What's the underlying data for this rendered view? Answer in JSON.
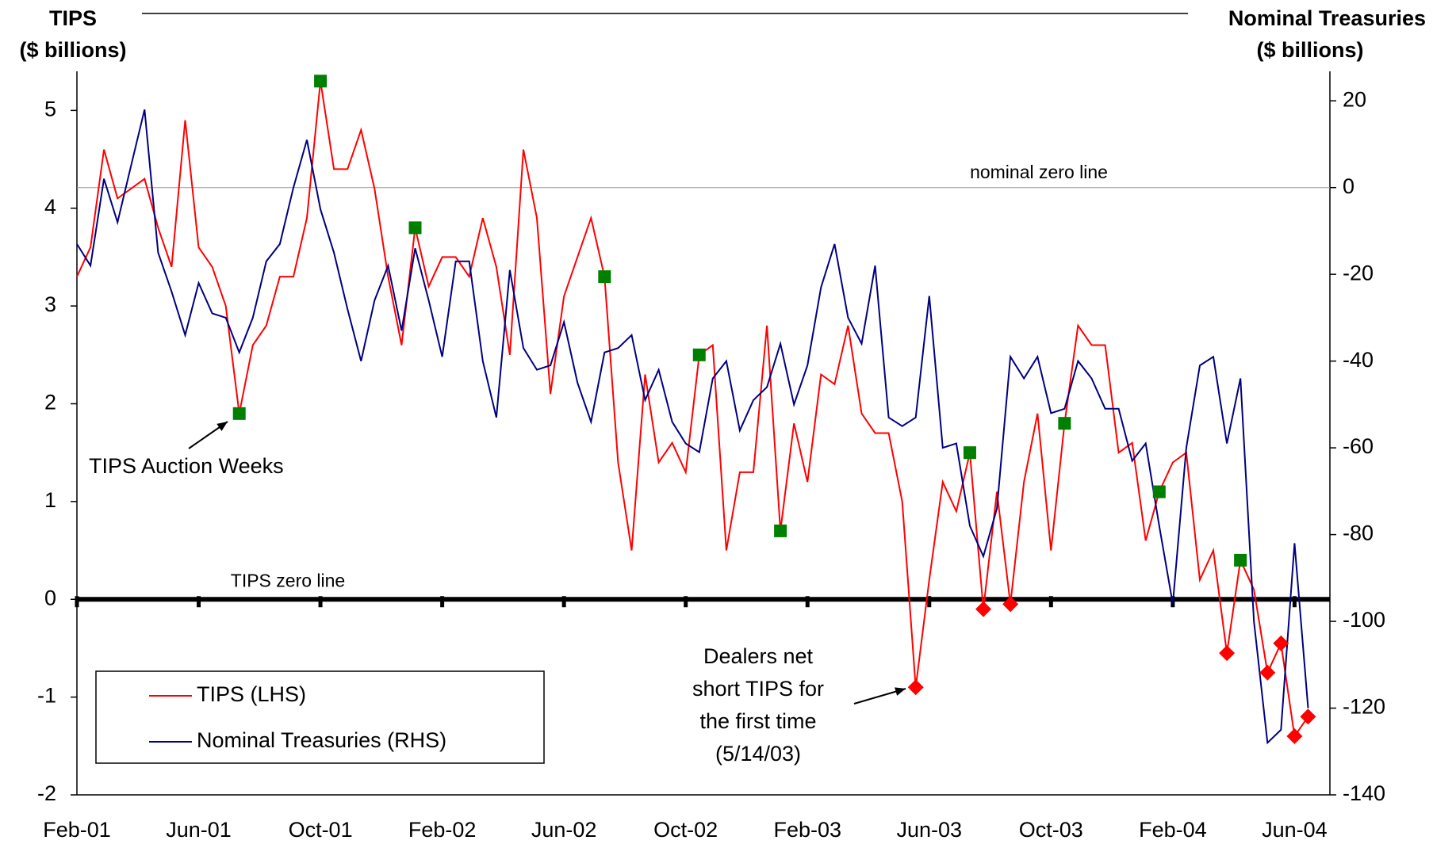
{
  "chart_data": {
    "type": "line",
    "y_label_lines": [
      "TIPS",
      "($ billions)"
    ],
    "y2_label_lines": [
      "Nominal Treasuries",
      "($ billions)"
    ],
    "categories": [
      "Feb-01",
      null,
      null,
      null,
      null,
      null,
      null,
      null,
      null,
      "Jun-01",
      null,
      null,
      null,
      null,
      null,
      null,
      null,
      null,
      "Oct-01",
      null,
      null,
      null,
      null,
      null,
      null,
      null,
      null,
      "Feb-02",
      null,
      null,
      null,
      null,
      null,
      null,
      null,
      null,
      "Jun-02",
      null,
      null,
      null,
      null,
      null,
      null,
      null,
      null,
      "Oct-02",
      null,
      null,
      null,
      null,
      null,
      null,
      null,
      null,
      "Feb-03",
      null,
      null,
      null,
      null,
      null,
      null,
      null,
      null,
      "Jun-03",
      null,
      null,
      null,
      null,
      null,
      null,
      null,
      null,
      "Oct-03",
      null,
      null,
      null,
      null,
      null,
      null,
      null,
      null,
      "Feb-04",
      null,
      null,
      null,
      null,
      null,
      null,
      null,
      null,
      "Jun-04",
      null
    ],
    "series": [
      {
        "name": "TIPS (LHS)",
        "color": "#ff0000",
        "axis": "y",
        "values": [
          3.3,
          3.6,
          4.6,
          4.1,
          4.2,
          4.3,
          3.8,
          3.4,
          4.9,
          3.6,
          3.4,
          3.0,
          1.9,
          2.6,
          2.8,
          3.3,
          3.3,
          3.9,
          5.3,
          4.4,
          4.4,
          4.8,
          4.2,
          3.3,
          2.6,
          3.8,
          3.2,
          3.5,
          3.5,
          3.3,
          3.9,
          3.4,
          2.5,
          4.6,
          3.9,
          2.1,
          3.1,
          3.5,
          3.9,
          3.3,
          1.4,
          0.5,
          2.3,
          1.4,
          1.6,
          1.3,
          2.5,
          2.6,
          0.5,
          1.3,
          1.3,
          2.8,
          0.7,
          1.8,
          1.2,
          2.3,
          2.2,
          2.8,
          1.9,
          1.7,
          1.7,
          1.0,
          -0.9,
          0.2,
          1.2,
          0.9,
          1.5,
          -0.1,
          1.1,
          -0.05,
          1.2,
          1.9,
          0.5,
          1.8,
          2.8,
          2.6,
          2.6,
          1.5,
          1.6,
          0.6,
          1.1,
          1.4,
          1.5,
          0.2,
          0.5,
          -0.55,
          0.4,
          0.1,
          -0.75,
          -0.45,
          -1.4,
          -1.2
        ]
      },
      {
        "name": "Nominal Treasuries (RHS)",
        "color": "#000080",
        "axis": "y2",
        "values": [
          -13,
          -18,
          2,
          -8,
          5,
          18,
          -15,
          -24,
          -34,
          -22,
          -29,
          -30,
          -38,
          -30,
          -17,
          -13,
          0,
          11,
          -5,
          -15,
          -28,
          -40,
          -26,
          -18,
          -33,
          -14,
          -26,
          -39,
          -17,
          -17,
          -40,
          -53,
          -19,
          -37,
          -42,
          -41,
          -31,
          -45,
          -54,
          -38,
          -37,
          -34,
          -49,
          -42,
          -54,
          -59,
          -61,
          -44,
          -40,
          -56,
          -49,
          -46,
          -36,
          -50,
          -41,
          -23,
          -13,
          -30,
          -36,
          -18,
          -53,
          -55,
          -53,
          -25,
          -60,
          -59,
          -78,
          -85,
          -74,
          -39,
          -44,
          -39,
          -52,
          -51,
          -40,
          -44,
          -51,
          -51,
          -63,
          -59,
          -78,
          -96,
          -60,
          -41,
          -39,
          -59,
          -44,
          -100,
          -128,
          -125,
          -82,
          -120
        ]
      }
    ],
    "ylim": [
      -2,
      5.4
    ],
    "yticks": [
      -2,
      -1,
      0,
      1,
      2,
      3,
      4,
      5
    ],
    "y2lim": [
      -140,
      26.8
    ],
    "y2ticks": [
      -140,
      -120,
      -100,
      -80,
      -60,
      -40,
      -20,
      0,
      20
    ],
    "legend": "lower left",
    "annotations": {
      "tips_zero_line": "TIPS zero line",
      "nominal_zero_line": "nominal zero line",
      "auction": {
        "text": "TIPS Auction Weeks",
        "points": [
          12,
          18,
          25,
          39,
          46,
          52,
          66,
          73,
          80,
          86
        ],
        "color": "#008000"
      },
      "short": {
        "lines": [
          "Dealers net",
          "short TIPS for",
          "the first time",
          "(5/14/03)"
        ],
        "color": "#ff0000"
      }
    }
  }
}
